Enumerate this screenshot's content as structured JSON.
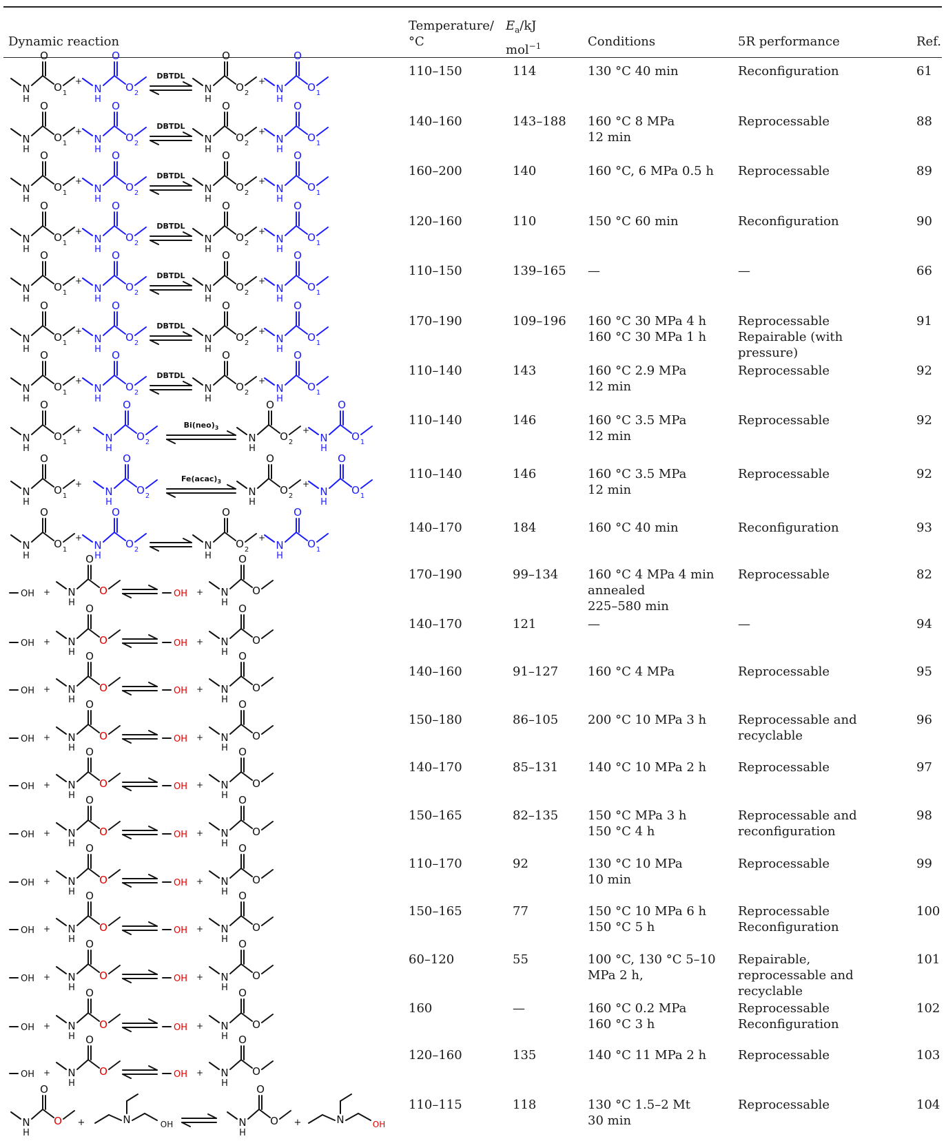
{
  "header": {
    "col_reaction": "Dynamic reaction",
    "col_temp_1": "Temperature/",
    "col_temp_2": "°C",
    "col_ea_1": "E",
    "col_ea_sub": "a",
    "col_ea_2": "/kJ",
    "col_ea_3": "mol",
    "col_ea_sup": "−1",
    "col_conditions": "Conditions",
    "col_perf": "5R performance",
    "col_ref": "Ref."
  },
  "rows": [
    {
      "scheme": "cat",
      "catalyst": "DBTDL",
      "temp": "110–150",
      "ea": "114",
      "cond": [
        "130 °C 40 min"
      ],
      "perf": [
        "Reconfiguration"
      ],
      "ref": "61"
    },
    {
      "scheme": "cat",
      "catalyst": "DBTDL",
      "temp": "140–160",
      "ea": "143–188",
      "cond": [
        "160 °C 8 MPa",
        "12 min"
      ],
      "perf": [
        "Reprocessable"
      ],
      "ref": "88"
    },
    {
      "scheme": "cat",
      "catalyst": "DBTDL",
      "temp": "160–200",
      "ea": "140",
      "cond": [
        "160 °C, 6 MPa 0.5 h"
      ],
      "perf": [
        "Reprocessable"
      ],
      "ref": "89"
    },
    {
      "scheme": "cat",
      "catalyst": "DBTDL",
      "temp": "120–160",
      "ea": "110",
      "cond": [
        "150 °C 60 min"
      ],
      "perf": [
        "Reconfiguration"
      ],
      "ref": "90"
    },
    {
      "scheme": "cat",
      "catalyst": "DBTDL",
      "temp": "110–150",
      "ea": "139–165",
      "cond": [
        "—"
      ],
      "perf": [
        "—"
      ],
      "ref": "66"
    },
    {
      "scheme": "cat",
      "catalyst": "DBTDL",
      "temp": "170–190",
      "ea": "109–196",
      "cond": [
        "160 °C 30 MPa 4 h",
        "160 °C 30 MPa 1 h"
      ],
      "perf": [
        "Reprocessable",
        "Repairable (with",
        "pressure)"
      ],
      "ref": "91"
    },
    {
      "scheme": "cat",
      "catalyst": "DBTDL",
      "temp": "110–140",
      "ea": "143",
      "cond": [
        "160 °C 2.9 MPa",
        "12 min"
      ],
      "perf": [
        "Reprocessable"
      ],
      "ref": "92"
    },
    {
      "scheme": "catwide",
      "catalyst": "Bi(neo)",
      "cat_sub": "3",
      "temp": "110–140",
      "ea": "146",
      "cond": [
        "160 °C 3.5 MPa",
        "12 min"
      ],
      "perf": [
        "Reprocessable"
      ],
      "ref": "92"
    },
    {
      "scheme": "catwide",
      "catalyst": "Fe(acac)",
      "cat_sub": "3",
      "temp": "110–140",
      "ea": "146",
      "cond": [
        "160 °C 3.5 MPa",
        "12 min"
      ],
      "perf": [
        "Reprocessable"
      ],
      "ref": "92"
    },
    {
      "scheme": "cat",
      "catalyst": "",
      "temp": "140–170",
      "ea": "184",
      "cond": [
        "160 °C 40 min"
      ],
      "perf": [
        "Reconfiguration"
      ],
      "ref": "93"
    },
    {
      "scheme": "oh",
      "temp": "170–190",
      "ea": "99–134",
      "cond": [
        "160 °C 4 MPa 4 min",
        "annealed",
        "225–580 min"
      ],
      "perf": [
        "Reprocessable"
      ],
      "ref": "82"
    },
    {
      "scheme": "oh",
      "temp": "140–170",
      "ea": "121",
      "cond": [
        "—"
      ],
      "perf": [
        "—"
      ],
      "ref": "94"
    },
    {
      "scheme": "oh",
      "temp": "140–160",
      "ea": "91–127",
      "cond": [
        "160 °C 4 MPa"
      ],
      "perf": [
        "Reprocessable"
      ],
      "ref": "95"
    },
    {
      "scheme": "oh",
      "temp": "150–180",
      "ea": "86–105",
      "cond": [
        "200 °C 10 MPa 3 h"
      ],
      "perf": [
        "Reprocessable and",
        "recyclable"
      ],
      "ref": "96"
    },
    {
      "scheme": "oh",
      "temp": "140–170",
      "ea": "85–131",
      "cond": [
        "140 °C 10 MPa 2 h"
      ],
      "perf": [
        "Reprocessable"
      ],
      "ref": "97"
    },
    {
      "scheme": "oh",
      "temp": "150–165",
      "ea": "82–135",
      "cond": [
        "150 °C MPa 3 h",
        "150 °C 4 h"
      ],
      "perf": [
        "Reprocessable and",
        "reconfiguration"
      ],
      "ref": "98"
    },
    {
      "scheme": "oh",
      "temp": "110–170",
      "ea": "92",
      "cond": [
        "130 °C 10 MPa",
        "10 min"
      ],
      "perf": [
        "Reprocessable"
      ],
      "ref": "99"
    },
    {
      "scheme": "oh",
      "temp": "150–165",
      "ea": "77",
      "cond": [
        "150 °C 10 MPa 6 h",
        "150 °C 5 h"
      ],
      "perf": [
        "Reprocessable",
        "Reconfiguration"
      ],
      "ref": "100"
    },
    {
      "scheme": "oh",
      "temp": "60–120",
      "ea": "55",
      "cond": [
        "100 °C, 130 °C 5–10",
        "MPa 2 h,"
      ],
      "perf": [
        "Repairable,",
        "reprocessable and",
        "recyclable"
      ],
      "ref": "101"
    },
    {
      "scheme": "oh",
      "temp": "160",
      "ea": "—",
      "cond": [
        "160 °C 0.2 MPa",
        "160 °C 3 h"
      ],
      "perf": [
        "Reprocessable",
        "Reconfiguration"
      ],
      "ref": "102"
    },
    {
      "scheme": "oh",
      "temp": "120–160",
      "ea": "135",
      "cond": [
        "140 °C 11 MPa 2 h"
      ],
      "perf": [
        "Reprocessable"
      ],
      "ref": "103"
    },
    {
      "scheme": "amine",
      "temp": "110–115",
      "ea": "118",
      "cond": [
        "130 °C 1.5–2 Mt",
        "30 min"
      ],
      "perf": [
        "Reprocessable"
      ],
      "ref": "104"
    }
  ],
  "scheme_text": {
    "O": "O",
    "N": "N",
    "H": "H",
    "plus": "+",
    "OH": "OH",
    "sub1": "1",
    "sub2": "2"
  },
  "colors": {
    "blue": "#1a1aff",
    "red": "#e00000",
    "black": "#111111"
  }
}
